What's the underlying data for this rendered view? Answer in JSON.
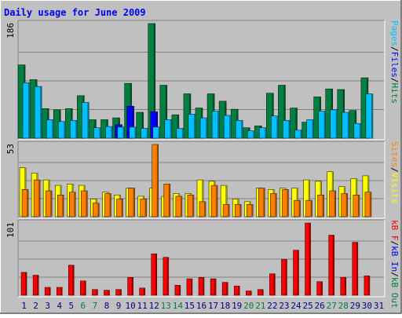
{
  "chart_data": [
    {
      "type": "bar",
      "title": "Daily usage for June 2009",
      "days": [
        "1",
        "2",
        "3",
        "4",
        "5",
        "6",
        "7",
        "8",
        "9",
        "10",
        "11",
        "12",
        "13",
        "14",
        "15",
        "16",
        "17",
        "18",
        "19",
        "20",
        "21",
        "22",
        "23",
        "24",
        "25",
        "26",
        "27",
        "28",
        "29",
        "30",
        "31"
      ],
      "weekend_days": [
        6,
        7,
        13,
        14,
        20,
        21,
        27,
        28
      ],
      "panels": [
        {
          "name": "hits-files-pages",
          "ymax": 186,
          "ymax_label": "186",
          "axis_label_parts": [
            "Pages",
            "/",
            "Files",
            "/",
            "Hits"
          ],
          "axis_label_colors": [
            "#00c0ff",
            "#000000",
            "#0000ff",
            "#000000",
            "#008040"
          ],
          "series": [
            {
              "name": "Hits",
              "color": "#008040",
              "values": [
                119,
                95,
                48,
                46,
                48,
                69,
                30,
                30,
                33,
                89,
                42,
                186,
                86,
                38,
                72,
                49,
                72,
                60,
                47,
                17,
                20,
                73,
                86,
                49,
                26,
                67,
                80,
                79,
                45,
                98
              ]
            },
            {
              "name": "Files",
              "color": "#0000ff",
              "values": [
                0,
                0,
                0,
                0,
                0,
                0,
                0,
                0,
                22,
                52,
                0,
                43,
                0,
                0,
                0,
                0,
                0,
                0,
                0,
                0,
                0,
                0,
                0,
                0,
                0,
                0,
                0,
                0,
                0,
                0
              ]
            },
            {
              "name": "Pages",
              "color": "#00c0ff",
              "values": [
                90,
                84,
                30,
                27,
                29,
                58,
                17,
                19,
                18,
                18,
                16,
                18,
                30,
                16,
                39,
                33,
                44,
                37,
                29,
                12,
                17,
                36,
                29,
                13,
                30,
                44,
                46,
                42,
                24,
                72
              ]
            }
          ]
        },
        {
          "name": "visits-sites",
          "ymax": 53,
          "ymax_label": "53",
          "axis_label_parts": [
            "Sites",
            "/",
            "Visits"
          ],
          "axis_label_colors": [
            "#ff8000",
            "#000000",
            "#ffff00"
          ],
          "series": [
            {
              "name": "Visits",
              "color": "#ffff00",
              "values": [
                36,
                32,
                27,
                23,
                24,
                23,
                13,
                18,
                16,
                21,
                15,
                21,
                15,
                17,
                17,
                27,
                26,
                23,
                13,
                11,
                21,
                20,
                21,
                21,
                27,
                26,
                33,
                22,
                28,
                30
              ]
            },
            {
              "name": "Sites",
              "color": "#ff8000",
              "values": [
                20,
                27,
                19,
                16,
                18,
                19,
                10,
                17,
                13,
                21,
                13,
                53,
                24,
                15,
                16,
                11,
                23,
                9,
                9,
                9,
                21,
                17,
                20,
                12,
                12,
                16,
                19,
                17,
                16,
                18
              ]
            }
          ]
        },
        {
          "name": "kbytes",
          "ymax": 101,
          "ymax_label": "101",
          "axis_label_parts": [
            "kB F",
            "/",
            "kB In",
            "/",
            "kB Out"
          ],
          "axis_label_colors": [
            "#ff0000",
            "#000000",
            "#0000ff",
            "#000000",
            "#008040"
          ],
          "series": [
            {
              "name": "kB F",
              "color": "#ff0000",
              "values": [
                32,
                28,
                11,
                11,
                42,
                20,
                8,
                7,
                8,
                25,
                10,
                58,
                53,
                14,
                23,
                25,
                23,
                18,
                13,
                6,
                8,
                30,
                50,
                63,
                101,
                19,
                84,
                25,
                74,
                27
              ]
            }
          ]
        }
      ]
    }
  ],
  "colors": {
    "background": "#c0c0c0",
    "title": "#0000ff",
    "gridline": "#808080",
    "weekday_label": "#000080",
    "weekend_label": "#008040"
  }
}
